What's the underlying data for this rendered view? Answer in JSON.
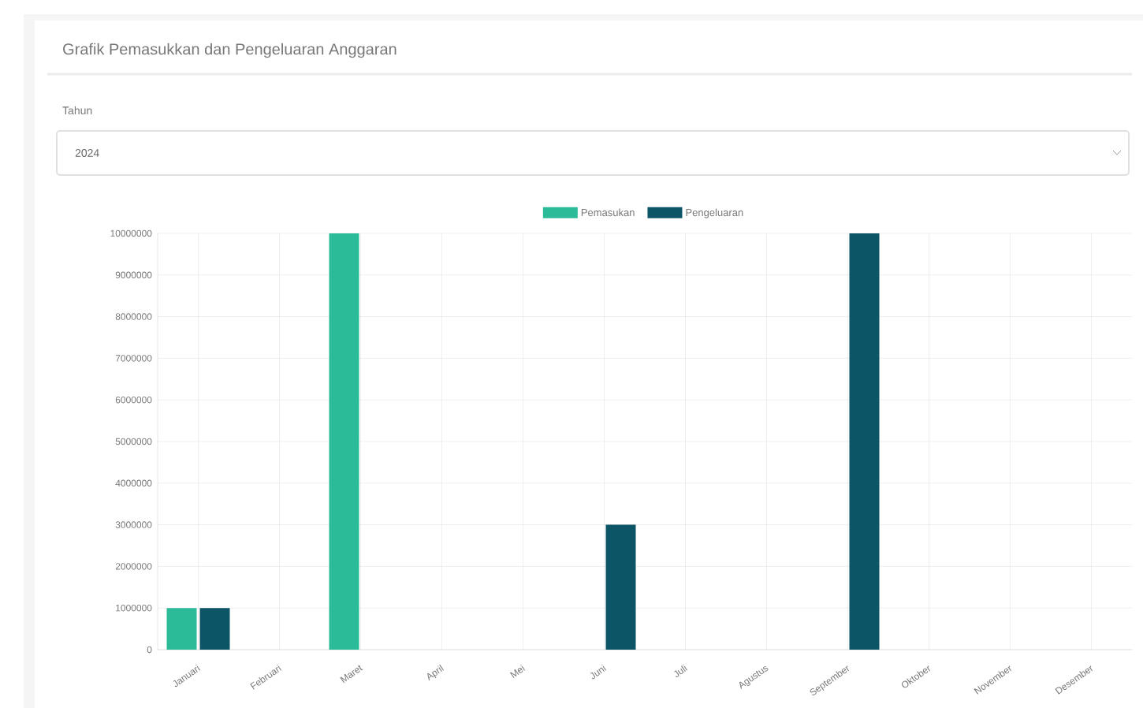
{
  "chart_data": {
    "type": "bar",
    "title": "Grafik Pemasukkan dan Pengeluaran Anggaran",
    "annotations": [
      "Tahun",
      "2024"
    ],
    "categories": [
      "Januari",
      "Februari",
      "Maret",
      "April",
      "Mei",
      "Juni",
      "Juli",
      "Agustus",
      "September",
      "Oktober",
      "November",
      "Desember"
    ],
    "series": [
      {
        "name": "Pemasukan",
        "color": "#2bbb99",
        "values": [
          1000000,
          0,
          10000000,
          0,
          0,
          0,
          0,
          0,
          0,
          0,
          0,
          0
        ]
      },
      {
        "name": "Pengeluaran",
        "color": "#0b5567",
        "values": [
          1000000,
          0,
          0,
          0,
          0,
          3000000,
          0,
          0,
          10000000,
          0,
          0,
          0
        ]
      }
    ],
    "ylim": [
      0,
      10000000
    ],
    "yticks": [
      0,
      1000000,
      2000000,
      3000000,
      4000000,
      5000000,
      6000000,
      7000000,
      8000000,
      9000000,
      10000000
    ],
    "grid": true,
    "legend": "top"
  }
}
